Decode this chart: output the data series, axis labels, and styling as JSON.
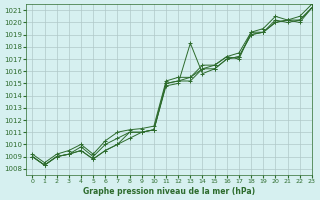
{
  "title": "Graphe pression niveau de la mer (hPa)",
  "bg_color": "#d6f0f0",
  "grid_color": "#b0c8c8",
  "line_color": "#2d6b2d",
  "marker_color": "#2d6b2d",
  "xlim": [
    -0.5,
    23
  ],
  "ylim": [
    1007.5,
    1021.5
  ],
  "xticks": [
    0,
    1,
    2,
    3,
    4,
    5,
    6,
    7,
    8,
    9,
    10,
    11,
    12,
    13,
    14,
    15,
    16,
    17,
    18,
    19,
    20,
    21,
    22,
    23
  ],
  "yticks": [
    1008,
    1009,
    1010,
    1011,
    1012,
    1013,
    1014,
    1015,
    1016,
    1017,
    1018,
    1019,
    1020,
    1021
  ],
  "series": [
    [
      1009.0,
      1008.3,
      1009.0,
      1009.2,
      1009.5,
      1008.8,
      1009.5,
      1010.0,
      1010.5,
      1011.0,
      1011.2,
      1014.8,
      1015.0,
      1018.3,
      1015.8,
      1016.2,
      1017.0,
      1017.2,
      1019.0,
      1019.2,
      1020.0,
      1020.2,
      1020.0,
      1021.2
    ],
    [
      1009.0,
      1008.3,
      1009.0,
      1009.2,
      1009.5,
      1008.8,
      1009.5,
      1010.0,
      1011.0,
      1011.0,
      1011.2,
      1015.0,
      1015.2,
      1015.5,
      1016.2,
      1016.5,
      1017.2,
      1017.0,
      1019.2,
      1019.2,
      1020.0,
      1020.2,
      1020.2,
      1021.2
    ],
    [
      1009.0,
      1008.3,
      1009.0,
      1009.2,
      1009.8,
      1009.0,
      1010.0,
      1010.5,
      1011.0,
      1011.0,
      1011.2,
      1015.0,
      1015.2,
      1015.2,
      1016.2,
      1016.2,
      1017.0,
      1017.2,
      1019.0,
      1019.2,
      1020.2,
      1020.0,
      1020.2,
      1021.2
    ],
    [
      1009.2,
      1008.5,
      1009.2,
      1009.5,
      1010.0,
      1009.2,
      1010.3,
      1011.0,
      1011.2,
      1011.3,
      1011.5,
      1015.2,
      1015.5,
      1015.5,
      1016.5,
      1016.5,
      1017.2,
      1017.5,
      1019.2,
      1019.5,
      1020.5,
      1020.2,
      1020.5,
      1021.5
    ]
  ]
}
